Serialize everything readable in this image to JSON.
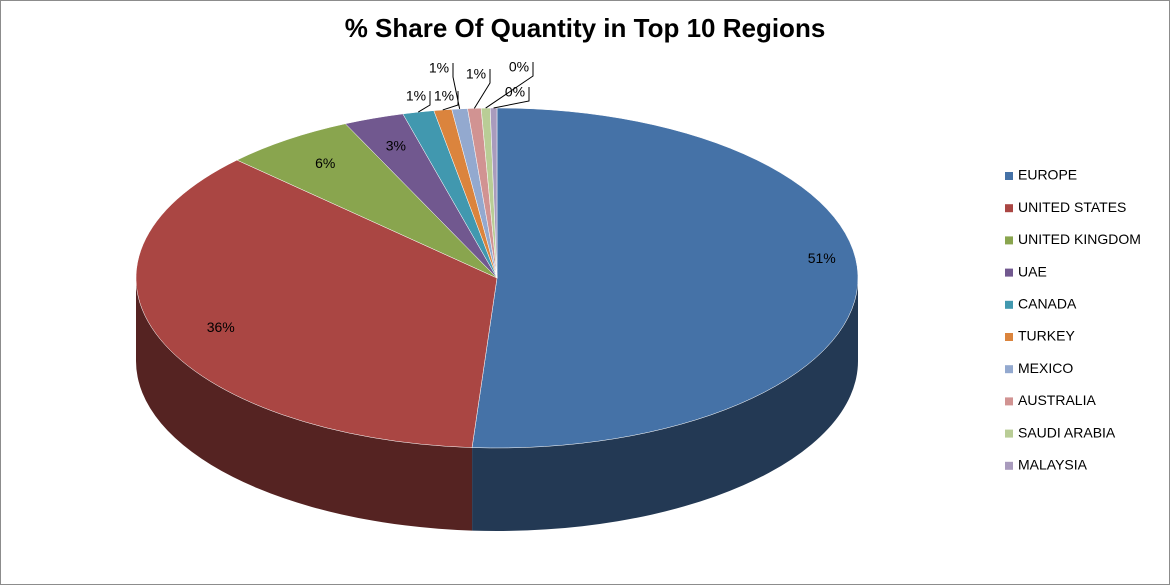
{
  "chart_data": {
    "type": "pie3d",
    "title": "% Share Of Quantity in Top 10 Regions",
    "categories": [
      "EUROPE",
      "UNITED STATES",
      "UNITED KINGDOM",
      "UAE",
      "CANADA",
      "TURKEY",
      "MEXICO",
      "AUSTRALIA",
      "SAUDI ARABIA",
      "MALAYSIA"
    ],
    "values": [
      51.1,
      36.1,
      5.9,
      2.7,
      1.4,
      0.8,
      0.7,
      0.6,
      0.4,
      0.3
    ],
    "value_labels": [
      "51%",
      "36%",
      "6%",
      "3%",
      "1%",
      "1%",
      "1%",
      "1%",
      "0%",
      "0%"
    ],
    "colors": [
      "#4572a7",
      "#aa4643",
      "#89a54e",
      "#71588f",
      "#4198af",
      "#db843d",
      "#93a9cf",
      "#d19392",
      "#b9cd96",
      "#a99bbd"
    ],
    "legend": "right"
  }
}
